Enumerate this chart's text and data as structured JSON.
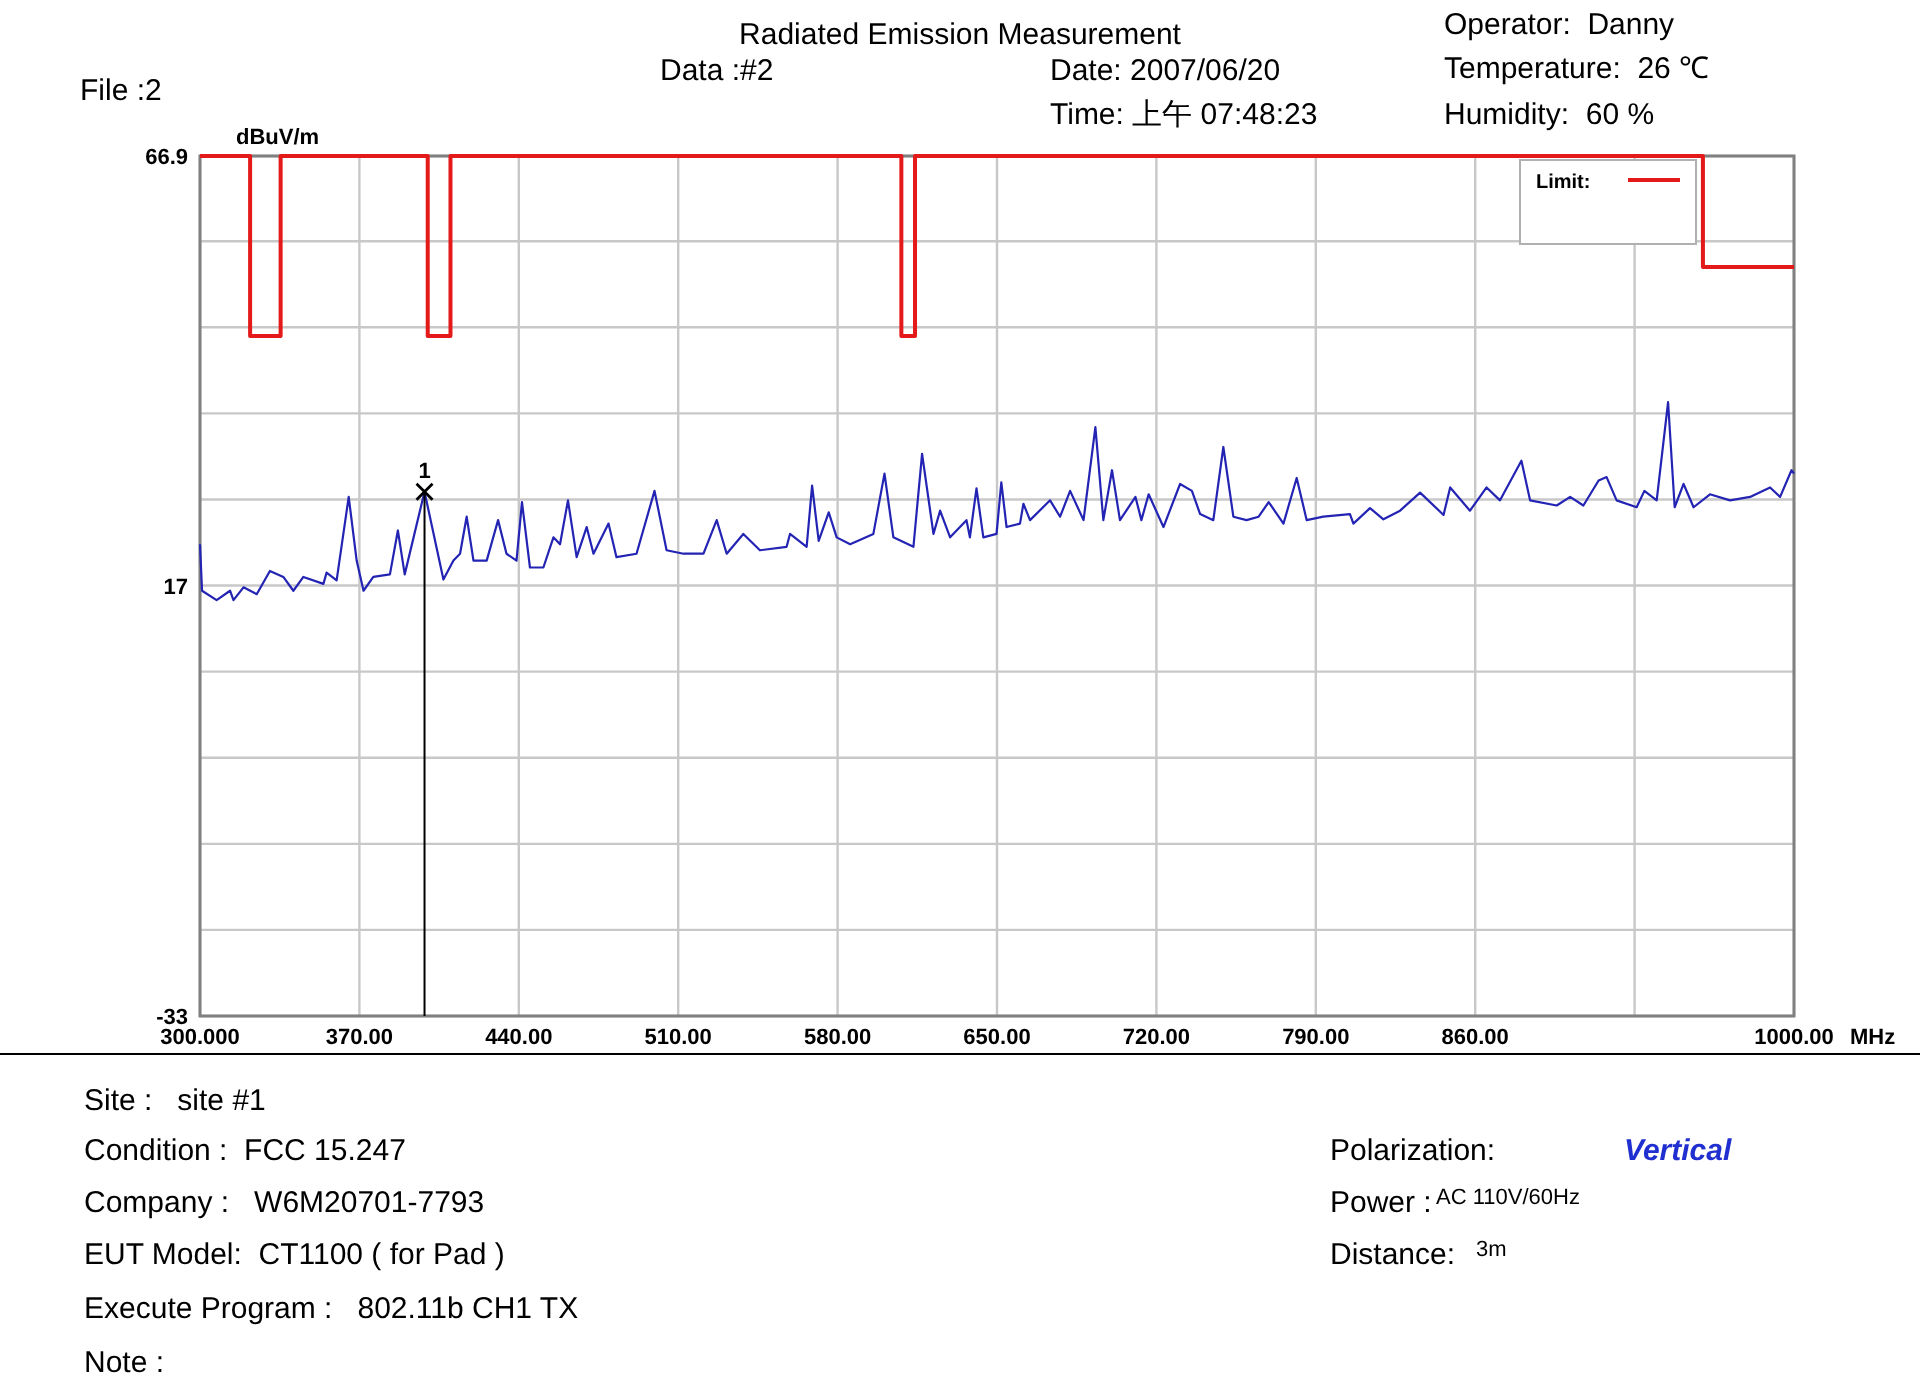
{
  "chart_data": {
    "type": "line",
    "title": "Radiated Emission Measurement",
    "xlabel": "MHz",
    "ylabel": "dBuV/m",
    "xlim": [
      300,
      1000
    ],
    "ylim": [
      -33,
      66.9
    ],
    "xticks": [
      {
        "value": 300,
        "label": "300.000"
      },
      {
        "value": 370,
        "label": "370.00"
      },
      {
        "value": 440,
        "label": "440.00"
      },
      {
        "value": 510,
        "label": "510.00"
      },
      {
        "value": 580,
        "label": "580.00"
      },
      {
        "value": 650,
        "label": "650.00"
      },
      {
        "value": 720,
        "label": "720.00"
      },
      {
        "value": 790,
        "label": "790.00"
      },
      {
        "value": 860,
        "label": "860.00"
      },
      {
        "value": 930,
        "label": null
      },
      {
        "value": 1000,
        "label": "1000.00"
      }
    ],
    "yticks": [
      -33,
      {
        "value": -23,
        "label": null
      },
      {
        "value": -13,
        "label": null
      },
      {
        "value": -3,
        "label": null
      },
      {
        "value": 7,
        "label": null
      },
      17,
      {
        "value": 27,
        "label": null
      },
      {
        "value": 37,
        "label": null
      },
      {
        "value": 47,
        "label": null
      },
      {
        "value": 57,
        "label": null
      },
      66.9
    ],
    "grid": true,
    "legend": "top right",
    "series": [
      {
        "color": "#2424b4",
        "x": [
          300.0,
          300.9,
          307.3,
          313.2,
          314.7,
          319.1,
          324.9,
          330.7,
          336.6,
          341.0,
          345.4,
          354.2,
          355.6,
          360.0,
          365.3,
          368.8,
          371.8,
          376.1,
          383.4,
          386.9,
          389.9,
          398.6,
          406.9,
          411.3,
          414.2,
          417.1,
          420.1,
          425.9,
          430.9,
          434.6,
          439.0,
          441.4,
          444.9,
          450.8,
          455.2,
          458.1,
          461.6,
          465.4,
          469.8,
          472.8,
          479.4,
          482.9,
          491.7,
          499.6,
          504.9,
          512.3,
          521.1,
          526.9,
          531.3,
          538.6,
          545.9,
          557.6,
          559.1,
          566.4,
          568.8,
          571.7,
          576.1,
          579.6,
          585.5,
          595.7,
          600.6,
          604.5,
          613.3,
          617.1,
          622.1,
          625.0,
          629.4,
          636.6,
          638.1,
          641.0,
          644.0,
          649.8,
          651.9,
          654.2,
          660.1,
          661.6,
          664.5,
          673.3,
          677.7,
          682.1,
          688.0,
          693.2,
          696.7,
          700.5,
          704.0,
          710.8,
          713.4,
          716.6,
          723.1,
          730.4,
          735.6,
          739.2,
          745.0,
          749.4,
          753.8,
          759.6,
          764.9,
          769.3,
          775.8,
          781.6,
          786.0,
          793.3,
          805.0,
          806.5,
          813.8,
          819.7,
          827.0,
          835.8,
          846.1,
          849.0,
          857.7,
          865.0,
          870.9,
          880.3,
          884.1,
          895.8,
          901.7,
          907.5,
          914.2,
          917.7,
          922.1,
          930.9,
          934.3,
          939.7,
          944.7,
          947.6,
          951.5,
          955.9,
          963.1,
          971.9,
          980.7,
          989.5,
          993.9,
          998.9,
          1000
        ],
        "values": [
          21.8,
          16.4,
          15.3,
          16.4,
          15.3,
          16.8,
          16.0,
          18.7,
          18.0,
          16.4,
          18.0,
          17.2,
          18.5,
          17.6,
          27.3,
          19.9,
          16.4,
          18.0,
          18.3,
          23.4,
          18.3,
          27.9,
          17.7,
          19.9,
          20.7,
          25.0,
          19.9,
          19.9,
          24.6,
          20.7,
          19.9,
          26.7,
          19.1,
          19.1,
          22.6,
          21.8,
          26.9,
          20.3,
          23.8,
          20.7,
          24.2,
          20.3,
          20.7,
          28.0,
          21.1,
          20.7,
          20.7,
          24.6,
          20.7,
          23.0,
          21.1,
          21.5,
          23.0,
          21.5,
          28.6,
          22.2,
          25.5,
          22.6,
          21.8,
          23.0,
          30.0,
          22.6,
          21.5,
          32.3,
          23.0,
          25.7,
          22.6,
          24.6,
          22.6,
          28.3,
          22.6,
          23.0,
          29.0,
          23.8,
          24.2,
          26.5,
          24.6,
          26.9,
          25.0,
          28.0,
          24.6,
          35.4,
          24.6,
          30.4,
          24.6,
          27.3,
          24.6,
          27.6,
          23.8,
          28.8,
          28.0,
          25.3,
          24.6,
          33.1,
          25.0,
          24.6,
          25.0,
          26.7,
          24.2,
          29.5,
          24.6,
          25.0,
          25.3,
          24.2,
          26.0,
          24.7,
          25.7,
          27.8,
          25.2,
          28.4,
          25.7,
          28.4,
          26.9,
          31.5,
          26.9,
          26.3,
          27.3,
          26.3,
          29.2,
          29.6,
          26.9,
          26.1,
          28.0,
          26.9,
          38.3,
          26.1,
          28.8,
          26.1,
          27.6,
          26.9,
          27.3,
          28.4,
          27.3,
          30.4,
          30.0
        ]
      },
      {
        "name": "Limit:",
        "type": "step",
        "color": "#e41a1a",
        "x": [
          300,
          322,
          335.4,
          400,
          410,
          608,
          614,
          960,
          1000
        ],
        "values": [
          66.9,
          46,
          66.9,
          46,
          66.9,
          46,
          66.9,
          54,
          54
        ]
      }
    ],
    "annotations": [
      "File :2",
      "Data :#2",
      "Date: 2007/06/20",
      "Time: 上午 07:48:23",
      "Operator:  Danny",
      "Temperature:  26 ℃",
      "Humidity:  60 %",
      "Site :   site #1",
      "Condition :  FCC 15.247",
      "Company :   W6M20701-7793",
      "EUT Model:  CT1100 ( for Pad )",
      "Execute Program :   802.11b CH1 TX",
      "Note :",
      "Polarization:",
      "Vertical",
      "Power :",
      "AC 110V/60Hz",
      "Distance:",
      "3m",
      {
        "text": "1",
        "x": 398.6,
        "y": 27.9
      }
    ]
  }
}
